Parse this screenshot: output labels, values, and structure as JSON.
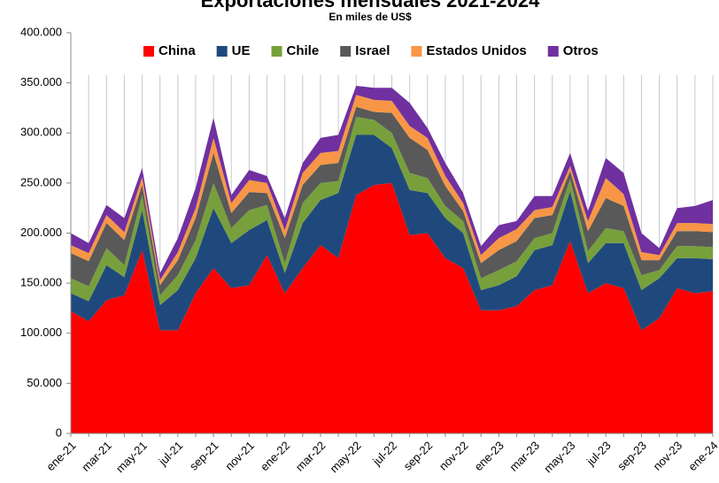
{
  "chart_data": {
    "type": "stacked_area",
    "title": "Exportaciones mensuales 2021-2024",
    "subtitle": "En miles de US$",
    "categories": [
      "ene-21",
      null,
      "mar-21",
      null,
      "may-21",
      null,
      "jul-21",
      null,
      "sep-21",
      null,
      "nov-21",
      null,
      "ene-22",
      null,
      "mar-22",
      null,
      "may-22",
      null,
      "jul-22",
      null,
      "sep-22",
      null,
      "nov-22",
      null,
      "ene-23",
      null,
      "mar-23",
      null,
      "may-23",
      null,
      "jul-23",
      null,
      "sep-23",
      null,
      "nov-23",
      null,
      "ene-24"
    ],
    "series": [
      {
        "name": "China",
        "color": "#ff0000",
        "values": [
          122000,
          112000,
          133000,
          138000,
          183000,
          103000,
          103000,
          140000,
          165000,
          145000,
          148000,
          178000,
          140000,
          165000,
          188000,
          175000,
          238000,
          248000,
          250000,
          198000,
          200000,
          175000,
          165000,
          123000,
          123000,
          127000,
          143000,
          148000,
          192000,
          140000,
          150000,
          145000,
          103000,
          115000,
          145000,
          140000,
          142000
        ]
      },
      {
        "name": "UE",
        "color": "#1f497d",
        "values": [
          18000,
          20000,
          35000,
          18000,
          40000,
          25000,
          40000,
          35000,
          60000,
          45000,
          55000,
          35000,
          20000,
          45000,
          45000,
          65000,
          60000,
          50000,
          35000,
          45000,
          40000,
          40000,
          35000,
          20000,
          25000,
          30000,
          40000,
          40000,
          50000,
          30000,
          40000,
          45000,
          40000,
          40000,
          30000,
          35000,
          32000
        ]
      },
      {
        "name": "Chile",
        "color": "#77a03c",
        "values": [
          15000,
          15000,
          17000,
          12000,
          15000,
          10000,
          15000,
          18000,
          25000,
          15000,
          20000,
          15000,
          10000,
          20000,
          17000,
          12000,
          18000,
          15000,
          15000,
          17000,
          15000,
          12000,
          12000,
          12000,
          15000,
          15000,
          12000,
          12000,
          12000,
          12000,
          15000,
          12000,
          15000,
          8000,
          12000,
          12000,
          12000
        ]
      },
      {
        "name": "Israel",
        "color": "#595959",
        "values": [
          25000,
          25000,
          25000,
          25000,
          10000,
          10000,
          15000,
          22000,
          30000,
          15000,
          18000,
          12000,
          25000,
          18000,
          18000,
          18000,
          10000,
          8000,
          20000,
          35000,
          28000,
          20000,
          10000,
          15000,
          20000,
          20000,
          20000,
          18000,
          8000,
          20000,
          30000,
          25000,
          15000,
          10000,
          15000,
          15000,
          15000
        ]
      },
      {
        "name": "Estados Unidos",
        "color": "#f79646",
        "values": [
          8000,
          8000,
          8000,
          8000,
          8000,
          5000,
          8000,
          10000,
          15000,
          10000,
          12000,
          10000,
          8000,
          12000,
          12000,
          12000,
          12000,
          12000,
          12000,
          12000,
          12000,
          10000,
          8000,
          8000,
          12000,
          12000,
          8000,
          8000,
          5000,
          10000,
          20000,
          12000,
          8000,
          5000,
          8000,
          8000,
          8000
        ]
      },
      {
        "name": "Otros",
        "color": "#7030a0",
        "values": [
          12000,
          10000,
          10000,
          14000,
          9000,
          7000,
          14000,
          20000,
          20000,
          8000,
          10000,
          7000,
          12000,
          10000,
          15000,
          16000,
          9000,
          12000,
          13000,
          23000,
          10000,
          13000,
          10000,
          9000,
          13000,
          8000,
          14000,
          11000,
          13000,
          10000,
          20000,
          21000,
          19000,
          7000,
          15000,
          17000,
          24000
        ]
      }
    ],
    "ylim": [
      0,
      400000
    ],
    "yticks": [
      0,
      {
        "value": 50000,
        "label": "50.000"
      },
      {
        "value": 100000,
        "label": "100.000"
      },
      {
        "value": 150000,
        "label": "150.000"
      },
      {
        "value": 200000,
        "label": "200.000"
      },
      {
        "value": 250000,
        "label": "250.000"
      },
      {
        "value": 300000,
        "label": "300.000"
      },
      {
        "value": 350000,
        "label": "350.000"
      },
      {
        "value": 400000,
        "label": "400.000"
      }
    ],
    "grid": true,
    "legend": "top"
  }
}
